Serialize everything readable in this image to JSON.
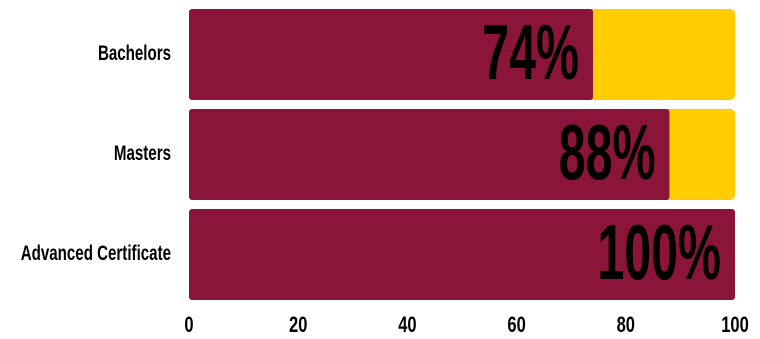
{
  "chart_data": {
    "type": "bar",
    "orientation": "horizontal",
    "categories": [
      "Bachelors",
      "Masters",
      "Advanced Certificate"
    ],
    "values": [
      74,
      88,
      100
    ],
    "value_labels": [
      "74%",
      "88%",
      "100%"
    ],
    "color": "#8a1538",
    "track_color": "#ffcc00",
    "xlim": [
      0,
      100
    ],
    "xticks": [
      0,
      20,
      40,
      60,
      80,
      100
    ]
  }
}
